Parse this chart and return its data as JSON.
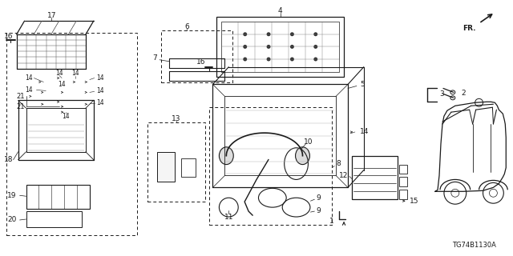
{
  "bg_color": "#ffffff",
  "line_color": "#1a1a1a",
  "fig_width": 6.4,
  "fig_height": 3.2,
  "dpi": 100,
  "diagram_code": "TG74B1130A"
}
